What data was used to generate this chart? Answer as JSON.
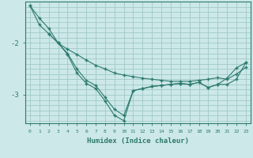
{
  "xlabel": "Humidex (Indice chaleur)",
  "background_color": "#cce8e8",
  "grid_color": "#a0c8c8",
  "line_color": "#2d7a6e",
  "xlim": [
    -0.5,
    23.5
  ],
  "ylim": [
    -3.55,
    -1.2
  ],
  "yticks": [
    -3,
    -2
  ],
  "xticks": [
    0,
    1,
    2,
    3,
    4,
    5,
    6,
    7,
    8,
    9,
    10,
    11,
    12,
    13,
    14,
    15,
    16,
    17,
    18,
    19,
    20,
    21,
    22,
    23
  ],
  "line1_x": [
    0,
    1,
    2,
    3,
    4,
    5,
    6,
    7,
    8,
    9,
    10,
    11,
    12,
    13,
    14,
    15,
    16,
    17,
    18,
    19,
    20,
    21,
    22,
    23
  ],
  "line1_y": [
    -1.28,
    -1.52,
    -1.72,
    -2.0,
    -2.12,
    -2.22,
    -2.33,
    -2.43,
    -2.5,
    -2.58,
    -2.62,
    -2.65,
    -2.68,
    -2.7,
    -2.72,
    -2.74,
    -2.74,
    -2.74,
    -2.72,
    -2.7,
    -2.67,
    -2.7,
    -2.6,
    -2.47
  ],
  "line2_x": [
    0,
    1,
    2,
    3,
    4,
    5,
    6,
    7,
    8,
    9,
    10,
    11,
    12,
    13,
    14,
    15,
    16,
    17,
    18,
    19,
    20,
    21,
    22,
    23
  ],
  "line2_y": [
    -1.28,
    -1.65,
    -1.82,
    -2.0,
    -2.2,
    -2.5,
    -2.72,
    -2.82,
    -3.05,
    -3.28,
    -3.4,
    -2.92,
    -2.88,
    -2.84,
    -2.82,
    -2.8,
    -2.78,
    -2.8,
    -2.76,
    -2.86,
    -2.8,
    -2.68,
    -2.48,
    -2.38
  ],
  "line3_x": [
    2,
    3,
    4,
    5,
    6,
    7,
    8,
    9,
    10,
    11,
    12,
    13,
    14,
    15,
    16,
    17,
    18,
    19,
    20,
    21,
    22,
    23
  ],
  "line3_y": [
    -1.82,
    -2.0,
    -2.22,
    -2.58,
    -2.78,
    -2.88,
    -3.12,
    -3.4,
    -3.5,
    -2.92,
    -2.88,
    -2.84,
    -2.82,
    -2.8,
    -2.78,
    -2.8,
    -2.76,
    -2.86,
    -2.8,
    -2.8,
    -2.7,
    -2.38
  ]
}
